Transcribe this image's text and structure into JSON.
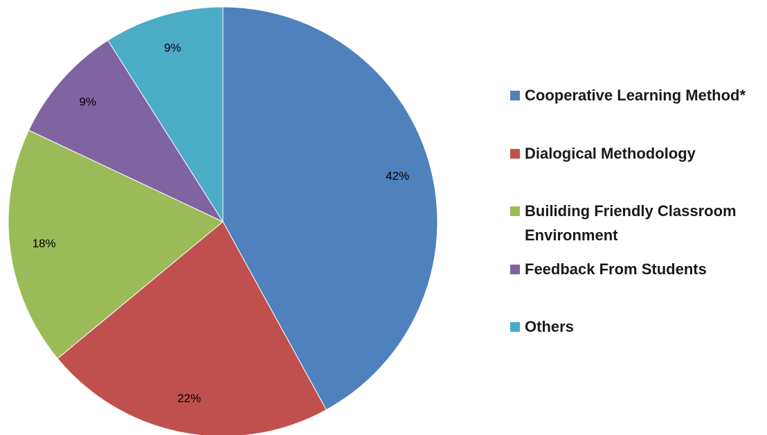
{
  "chart_data": {
    "type": "pie",
    "categories": [
      "Cooperative Learning Method*",
      "Dialogical Methodology",
      "Builiding Friendly Classroom Environment",
      "Feedback From Students",
      "Others"
    ],
    "values": [
      42,
      22,
      18,
      9,
      9
    ],
    "value_labels": [
      "42%",
      "22%",
      "18%",
      "9%",
      "9%"
    ],
    "colors": [
      "#4f81bd",
      "#c0504d",
      "#9bbb59",
      "#8064a2",
      "#4bacc6"
    ],
    "legend": "right"
  }
}
